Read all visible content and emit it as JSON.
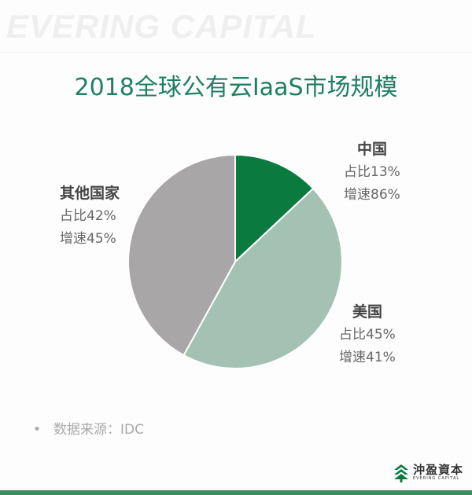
{
  "header": {
    "watermark": "EVERING CAPITAL"
  },
  "title": "2018全球公有云IaaS市场规模",
  "labels": [
    {
      "name": "中国",
      "share": "占比13%",
      "growth": "增速86%"
    },
    {
      "name": "美国",
      "share": "占比45%",
      "growth": "增速41%"
    },
    {
      "name": "其他国家",
      "share": "占比42%",
      "growth": "增速45%"
    }
  ],
  "source": {
    "bullet": "•",
    "text": "数据来源：IDC"
  },
  "logo": {
    "cn": "沖盈資本",
    "en": "EVERING CAPITAL"
  },
  "colors": {
    "china": "#0a7a3e",
    "usa": "#a3c2b3",
    "others": "#a9a6a8",
    "title": "#1e7f62",
    "bar": "#3a8e5d"
  },
  "chart_data": {
    "type": "pie",
    "title": "2018全球公有云IaaS市场规模",
    "categories": [
      "中国",
      "美国",
      "其他国家"
    ],
    "values": [
      13,
      45,
      42
    ],
    "growth_rates": [
      86,
      41,
      45
    ],
    "unit": "%",
    "start_angle": "12 o'clock, clockwise",
    "colors": [
      "#0a7a3e",
      "#a3c2b3",
      "#a9a6a8"
    ],
    "source": "IDC"
  }
}
